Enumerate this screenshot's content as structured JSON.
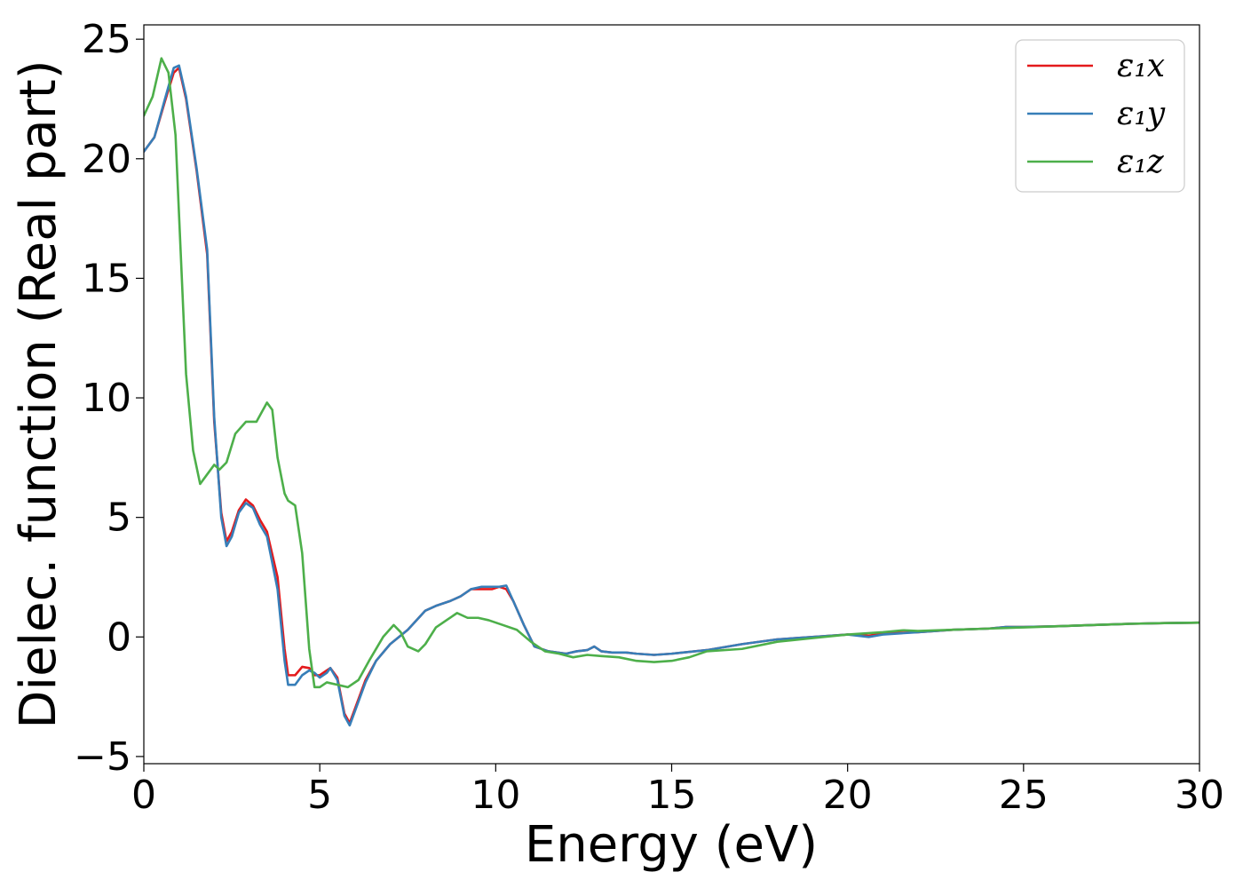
{
  "chart_data": {
    "type": "line",
    "title": "",
    "xlabel": "Energy (eV)",
    "ylabel": "Dielec. function (Real part)",
    "xlim": [
      0,
      30
    ],
    "ylim": [
      -5.3,
      25.6
    ],
    "xticks": [
      0,
      5,
      10,
      15,
      20,
      25,
      30
    ],
    "xtick_labels": [
      "0",
      "5",
      "10",
      "15",
      "20",
      "25",
      "30"
    ],
    "yticks": [
      -5,
      0,
      5,
      10,
      15,
      20,
      25
    ],
    "ytick_labels": [
      "−5",
      "0",
      "5",
      "10",
      "15",
      "20",
      "25"
    ],
    "grid": false,
    "legend_position": "top-right",
    "series": [
      {
        "name": "ε₁x",
        "color": "#e41a1c",
        "x": [
          0,
          0.3,
          0.6,
          0.85,
          1.0,
          1.2,
          1.5,
          1.8,
          2.0,
          2.2,
          2.35,
          2.5,
          2.7,
          2.9,
          3.1,
          3.3,
          3.5,
          3.8,
          4.0,
          4.1,
          4.3,
          4.5,
          4.7,
          4.85,
          5.0,
          5.2,
          5.3,
          5.5,
          5.7,
          5.85,
          6.0,
          6.3,
          6.6,
          7.0,
          7.5,
          8.0,
          8.3,
          8.7,
          9.0,
          9.3,
          9.6,
          9.9,
          10.1,
          10.3,
          10.5,
          10.8,
          11.1,
          11.5,
          12.0,
          12.3,
          12.6,
          12.8,
          13.0,
          13.3,
          13.7,
          14.0,
          14.5,
          15.0,
          16.0,
          17.0,
          18.0,
          19.0,
          20.0,
          20.6,
          21.0,
          22.0,
          23.0,
          24.0,
          24.5,
          25.0,
          26.0,
          27.0,
          28.0,
          29.0,
          30.0
        ],
        "y": [
          20.3,
          20.9,
          22.4,
          23.6,
          23.8,
          22.5,
          19.5,
          16.0,
          9.0,
          5.2,
          4.0,
          4.4,
          5.3,
          5.75,
          5.5,
          4.9,
          4.4,
          2.5,
          -0.5,
          -1.6,
          -1.6,
          -1.25,
          -1.3,
          -1.6,
          -1.6,
          -1.4,
          -1.3,
          -1.7,
          -3.2,
          -3.6,
          -3.0,
          -1.8,
          -1.0,
          -0.3,
          0.3,
          1.1,
          1.3,
          1.5,
          1.7,
          2.0,
          2.0,
          2.0,
          2.1,
          2.0,
          1.5,
          0.5,
          -0.4,
          -0.6,
          -0.7,
          -0.6,
          -0.55,
          -0.4,
          -0.6,
          -0.65,
          -0.65,
          -0.7,
          -0.75,
          -0.7,
          -0.55,
          -0.3,
          -0.1,
          0.0,
          0.1,
          0.05,
          0.15,
          0.2,
          0.3,
          0.35,
          0.42,
          0.42,
          0.45,
          0.5,
          0.55,
          0.58,
          0.6
        ]
      },
      {
        "name": "ε₁y",
        "color": "#377eb8",
        "x": [
          0,
          0.3,
          0.6,
          0.85,
          1.0,
          1.2,
          1.5,
          1.8,
          2.0,
          2.2,
          2.35,
          2.5,
          2.7,
          2.9,
          3.1,
          3.3,
          3.5,
          3.8,
          4.0,
          4.1,
          4.3,
          4.5,
          4.7,
          4.85,
          5.0,
          5.2,
          5.3,
          5.5,
          5.7,
          5.85,
          6.0,
          6.3,
          6.6,
          7.0,
          7.5,
          8.0,
          8.3,
          8.7,
          9.0,
          9.3,
          9.6,
          9.9,
          10.1,
          10.3,
          10.5,
          10.8,
          11.1,
          11.5,
          12.0,
          12.3,
          12.6,
          12.8,
          13.0,
          13.3,
          13.7,
          14.0,
          14.5,
          15.0,
          16.0,
          17.0,
          18.0,
          19.0,
          20.0,
          20.6,
          21.0,
          22.0,
          23.0,
          24.0,
          24.5,
          25.0,
          26.0,
          27.0,
          28.0,
          29.0,
          30.0
        ],
        "y": [
          20.3,
          20.9,
          22.5,
          23.8,
          23.9,
          22.6,
          19.6,
          16.2,
          9.2,
          5.0,
          3.8,
          4.2,
          5.2,
          5.6,
          5.4,
          4.7,
          4.2,
          2.0,
          -1.0,
          -2.0,
          -2.0,
          -1.6,
          -1.4,
          -1.5,
          -1.7,
          -1.5,
          -1.3,
          -1.8,
          -3.3,
          -3.7,
          -3.1,
          -1.9,
          -1.0,
          -0.3,
          0.3,
          1.1,
          1.3,
          1.5,
          1.7,
          2.0,
          2.1,
          2.1,
          2.1,
          2.15,
          1.5,
          0.5,
          -0.4,
          -0.6,
          -0.7,
          -0.6,
          -0.55,
          -0.4,
          -0.6,
          -0.65,
          -0.65,
          -0.7,
          -0.75,
          -0.7,
          -0.55,
          -0.3,
          -0.1,
          0.0,
          0.1,
          0.0,
          0.1,
          0.2,
          0.3,
          0.35,
          0.42,
          0.42,
          0.45,
          0.5,
          0.55,
          0.58,
          0.6
        ]
      },
      {
        "name": "ε₁z",
        "color": "#4daf4a",
        "x": [
          0,
          0.25,
          0.5,
          0.7,
          0.9,
          1.05,
          1.2,
          1.4,
          1.6,
          1.8,
          2.0,
          2.15,
          2.35,
          2.6,
          2.9,
          3.2,
          3.5,
          3.65,
          3.8,
          4.0,
          4.1,
          4.3,
          4.5,
          4.7,
          4.85,
          5.0,
          5.2,
          5.5,
          5.8,
          6.1,
          6.4,
          6.8,
          7.1,
          7.3,
          7.5,
          7.8,
          8.0,
          8.3,
          8.6,
          8.9,
          9.2,
          9.5,
          9.8,
          10.2,
          10.6,
          11.0,
          11.4,
          11.8,
          12.2,
          12.6,
          13.0,
          13.5,
          14.0,
          14.5,
          15.0,
          15.5,
          16.0,
          17.0,
          18.0,
          19.0,
          20.0,
          21.0,
          21.6,
          22.0,
          23.0,
          24.0,
          25.0,
          26.0,
          27.0,
          28.0,
          29.0,
          30.0
        ],
        "y": [
          21.8,
          22.6,
          24.2,
          23.6,
          21.0,
          16.0,
          11.0,
          7.8,
          6.4,
          6.8,
          7.2,
          7.0,
          7.3,
          8.5,
          9.0,
          9.0,
          9.8,
          9.5,
          7.5,
          6.0,
          5.7,
          5.5,
          3.5,
          -0.5,
          -2.1,
          -2.1,
          -1.9,
          -2.0,
          -2.1,
          -1.8,
          -1.0,
          0.0,
          0.5,
          0.2,
          -0.4,
          -0.6,
          -0.3,
          0.4,
          0.7,
          1.0,
          0.8,
          0.8,
          0.7,
          0.5,
          0.3,
          -0.2,
          -0.6,
          -0.7,
          -0.85,
          -0.75,
          -0.8,
          -0.85,
          -1.0,
          -1.05,
          -1.0,
          -0.85,
          -0.6,
          -0.5,
          -0.2,
          -0.05,
          0.1,
          0.2,
          0.28,
          0.25,
          0.3,
          0.35,
          0.4,
          0.45,
          0.5,
          0.55,
          0.58,
          0.6
        ]
      }
    ]
  }
}
